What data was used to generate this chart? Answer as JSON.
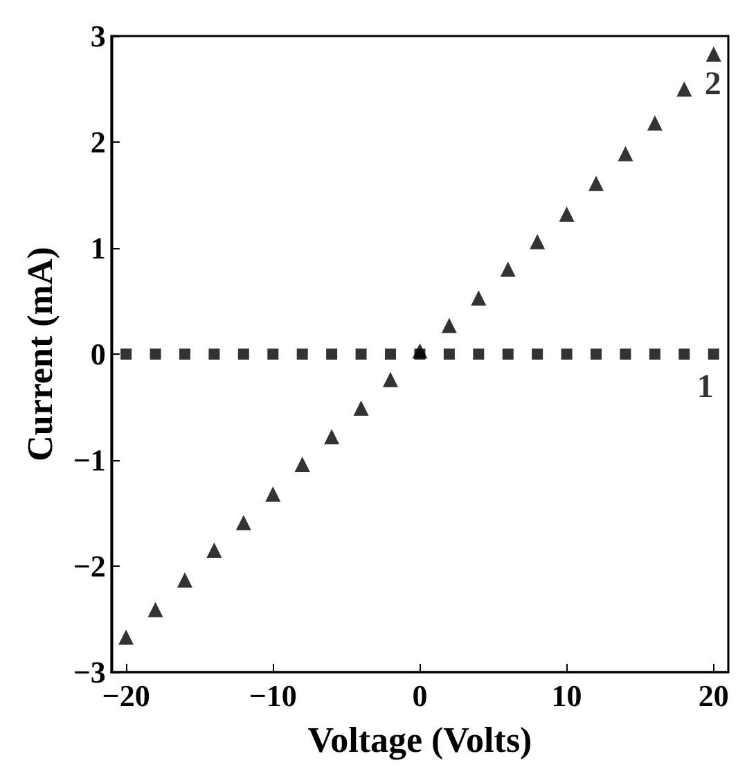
{
  "chart_data": {
    "type": "scatter",
    "xlabel": "Voltage (Volts)",
    "ylabel": "Current (mA)",
    "xlim": [
      -21,
      21
    ],
    "xticks": [
      -20,
      -10,
      0,
      10,
      20
    ],
    "ylim": [
      -3,
      3
    ],
    "yticks": [
      -3,
      -2,
      -1,
      0,
      1,
      2,
      3
    ],
    "grid": false,
    "legend": false,
    "x": [
      -20,
      -18,
      -16,
      -14,
      -12,
      -10,
      -8,
      -6,
      -4,
      -2,
      0,
      2,
      4,
      6,
      8,
      10,
      12,
      14,
      16,
      18,
      20
    ],
    "series": [
      {
        "name": "1",
        "color": "#000000",
        "marker": "square",
        "values": [
          0,
          0,
          0,
          0,
          0,
          0,
          0,
          0,
          0,
          0,
          0,
          0,
          0,
          0,
          0,
          0,
          0,
          0,
          0,
          0,
          0
        ]
      },
      {
        "name": "2",
        "color": "#000000",
        "marker": "triangle",
        "values": [
          -2.67,
          -2.41,
          -2.13,
          -1.85,
          -1.59,
          -1.32,
          -1.04,
          -0.78,
          -0.51,
          -0.24,
          0.03,
          0.27,
          0.53,
          0.8,
          1.06,
          1.32,
          1.61,
          1.89,
          2.18,
          2.5,
          2.83
        ]
      }
    ]
  }
}
